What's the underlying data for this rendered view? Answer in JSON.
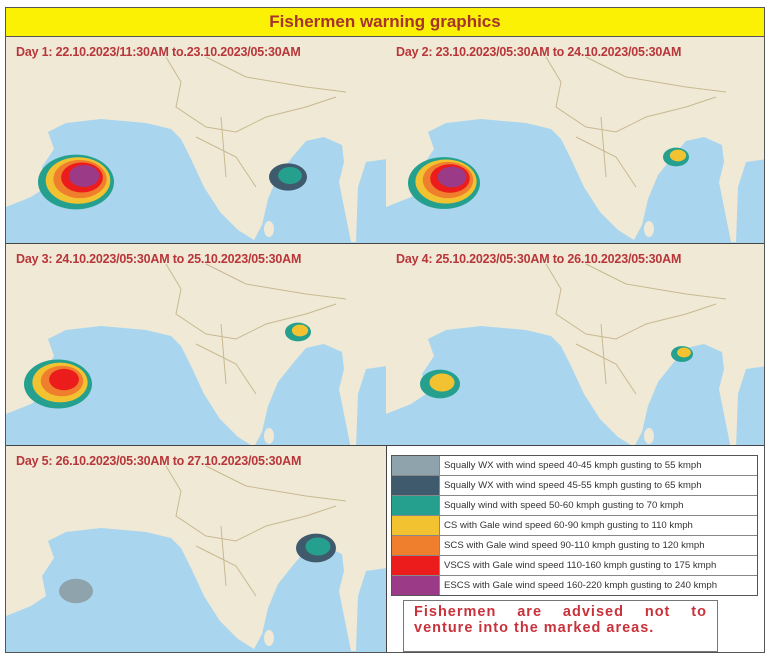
{
  "title": "Fishermen warning graphics",
  "panels": [
    {
      "label": "Day 1: 22.10.2023/11:30AM  to.23.10.2023/05:30AM",
      "systems": [
        {
          "area": "Arabian Sea",
          "levels": [
            "squally_50_60",
            "cs",
            "scs",
            "vscs",
            "escs"
          ]
        },
        {
          "area": "Bay of Bengal",
          "levels": [
            "squally_45_55",
            "squally_50_60"
          ]
        }
      ]
    },
    {
      "label": "Day 2: 23.10.2023/05:30AM  to 24.10.2023/05:30AM",
      "systems": [
        {
          "area": "Arabian Sea",
          "levels": [
            "squally_50_60",
            "cs",
            "scs",
            "vscs",
            "escs"
          ]
        },
        {
          "area": "Bay of Bengal",
          "levels": [
            "squally_50_60",
            "cs"
          ]
        }
      ]
    },
    {
      "label": "Day 3: 24.10.2023/05:30AM  to 25.10.2023/05:30AM",
      "systems": [
        {
          "area": "Arabian Sea",
          "levels": [
            "squally_50_60",
            "cs",
            "scs",
            "vscs"
          ]
        },
        {
          "area": "Bay of Bengal",
          "levels": [
            "squally_50_60",
            "cs"
          ]
        }
      ]
    },
    {
      "label": "Day 4: 25.10.2023/05:30AM  to 26.10.2023/05:30AM",
      "systems": [
        {
          "area": "Arabian Sea",
          "levels": [
            "squally_50_60",
            "cs"
          ]
        },
        {
          "area": "Bay of Bengal",
          "levels": [
            "squally_50_60",
            "cs"
          ]
        }
      ]
    },
    {
      "label": "Day 5: 26.10.2023/05:30AM  to 27.10.2023/05:30AM",
      "systems": [
        {
          "area": "Arabian Sea",
          "levels": [
            "squally_40_45"
          ]
        },
        {
          "area": "Bay of Bengal",
          "levels": [
            "squally_45_55",
            "squally_50_60"
          ]
        }
      ]
    }
  ],
  "legend": [
    {
      "key": "squally_40_45",
      "color": "#8fa3ad",
      "text": "Squally WX with wind speed 40-45  kmph gusting to 55 kmph"
    },
    {
      "key": "squally_45_55",
      "color": "#3f5a6c",
      "text": "Squally WX with wind speed 45-55  kmph gusting to 65 kmph"
    },
    {
      "key": "squally_50_60",
      "color": "#25a08e",
      "text": "Squally wind with speed 50-60 kmph gusting to 70 kmph"
    },
    {
      "key": "cs",
      "color": "#f2c230",
      "text": "CS with Gale wind speed 60-90 kmph gusting to 110 kmph"
    },
    {
      "key": "scs",
      "color": "#ef7f2d",
      "text": "SCS with Gale wind speed 90-110 kmph gusting to 120 kmph"
    },
    {
      "key": "vscs",
      "color": "#ec1c1c",
      "text": "VSCS with Gale wind speed 110-160  kmph gusting to 175 kmph"
    },
    {
      "key": "escs",
      "color": "#9b3a86",
      "text": "ESCS with Gale wind speed 160-220 kmph gusting to 240 kmph"
    }
  ],
  "advice": "Fishermen are advised not to venture into the marked areas.",
  "colors": {
    "title_bg": "#fbf104",
    "title_text": "#a5332e",
    "sea": "#a9d6ee",
    "land": "#efe9d6",
    "label_text": "#b8363a"
  }
}
